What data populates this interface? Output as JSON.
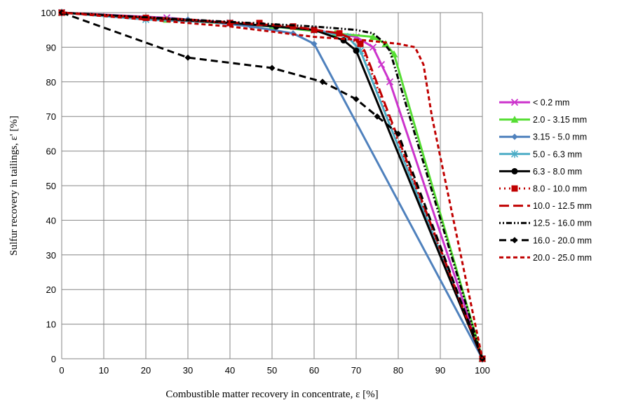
{
  "chart_data": {
    "type": "line",
    "xlabel": "Combustible matter recovery in concentrate, ε [%]",
    "ylabel": "Sulfur recovery in tailings, ε' [%]",
    "xlim": [
      0,
      100
    ],
    "ylim": [
      0,
      100
    ],
    "xticks": [
      "0",
      "10",
      "20",
      "30",
      "40",
      "50",
      "60",
      "70",
      "80",
      "90",
      "100"
    ],
    "yticks": [
      "0",
      "10",
      "20",
      "30",
      "40",
      "50",
      "60",
      "70",
      "80",
      "90",
      "100"
    ],
    "grid": true,
    "legend_position": "right",
    "series": [
      {
        "name": "< 0.2 mm",
        "color": "#cc33cc",
        "marker": "x",
        "dash": "solid",
        "x": [
          0,
          25,
          40,
          60,
          70,
          74,
          76,
          78,
          100
        ],
        "y": [
          100,
          98.5,
          97,
          95,
          93,
          90,
          85,
          80,
          0
        ]
      },
      {
        "name": "2.0 - 3.15 mm",
        "color": "#55dd33",
        "marker": "triangle",
        "dash": "solid",
        "x": [
          0,
          25,
          50,
          65,
          74,
          77,
          79,
          100
        ],
        "y": [
          100,
          98,
          96,
          94,
          93,
          91,
          88,
          0
        ]
      },
      {
        "name": "3.15 - 5.0 mm",
        "color": "#4f81bd",
        "marker": "diamond",
        "dash": "solid",
        "x": [
          0,
          30,
          45,
          55,
          60,
          100
        ],
        "y": [
          100,
          98,
          96,
          94,
          91,
          0
        ]
      },
      {
        "name": "5.0 - 6.3 mm",
        "color": "#4bacc6",
        "marker": "asterisk",
        "dash": "solid",
        "x": [
          0,
          20,
          40,
          60,
          68,
          71,
          100
        ],
        "y": [
          100,
          98,
          97,
          95,
          93,
          89,
          0
        ]
      },
      {
        "name": "6.3 - 8.0 mm",
        "color": "#000000",
        "marker": "circle",
        "dash": "solid",
        "x": [
          0,
          20,
          40,
          51,
          60,
          67,
          70,
          100
        ],
        "y": [
          100,
          98.5,
          97,
          96,
          95,
          92,
          89,
          0
        ]
      },
      {
        "name": "8.0 - 10.0 mm",
        "color": "#c00000",
        "marker": "square",
        "dash": "dot",
        "x": [
          0,
          20,
          40,
          47,
          55,
          60,
          66,
          71,
          100
        ],
        "y": [
          100,
          98.5,
          97,
          97,
          96,
          95,
          94,
          91,
          0
        ]
      },
      {
        "name": "10.0 - 12.5 mm",
        "color": "#c00000",
        "marker": "none",
        "dash": "longdash",
        "x": [
          0,
          30,
          55,
          66,
          70,
          72,
          100
        ],
        "y": [
          100,
          98,
          96,
          94,
          92,
          89,
          0
        ]
      },
      {
        "name": "12.5 - 16.0 mm",
        "color": "#000000",
        "marker": "none",
        "dash": "dashdotdot",
        "x": [
          0,
          30,
          60,
          70,
          74,
          76,
          78,
          100
        ],
        "y": [
          100,
          98,
          96,
          95,
          94,
          92,
          89,
          0
        ]
      },
      {
        "name": "16.0 - 20.0 mm",
        "color": "#000000",
        "marker": "diamond",
        "dash": "dash",
        "x": [
          0,
          30,
          50,
          62,
          70,
          75,
          80,
          100
        ],
        "y": [
          100,
          87,
          84,
          80,
          75,
          70,
          65,
          0
        ]
      },
      {
        "name": "20.0 - 25.0 mm",
        "color": "#c00000",
        "marker": "none",
        "dash": "shortdash",
        "x": [
          0,
          40,
          60,
          72,
          80,
          84,
          86,
          88,
          100
        ],
        "y": [
          100,
          96,
          93,
          92,
          91,
          90,
          85,
          70,
          0
        ]
      }
    ]
  }
}
